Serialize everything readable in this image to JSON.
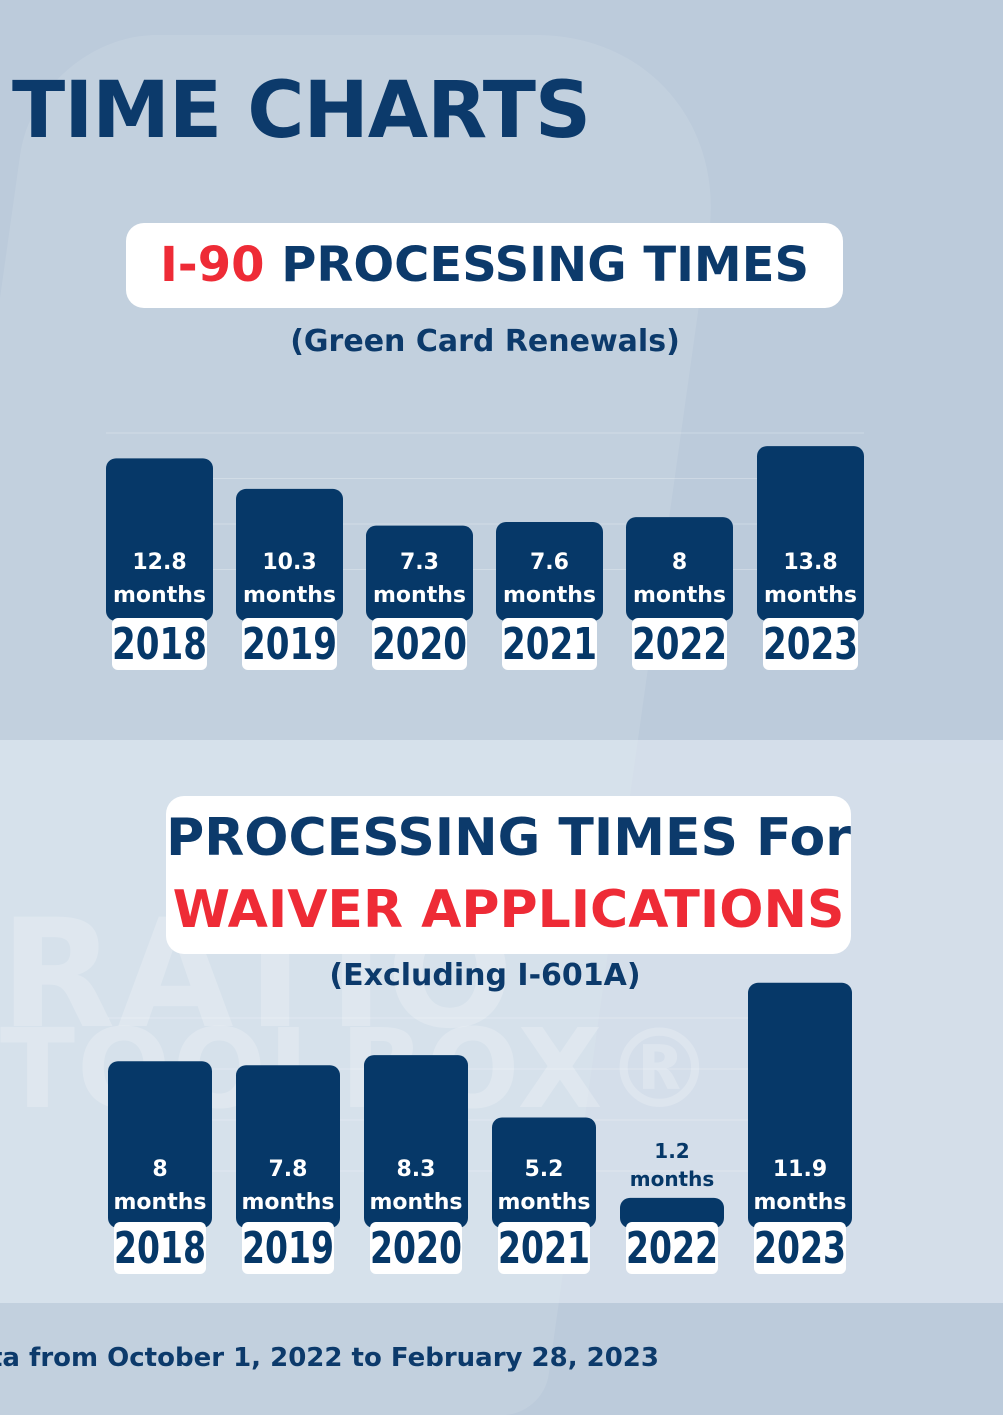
{
  "page_title": "TIME CHARTS",
  "footer_text": "ta from October 1, 2022 to February 28, 2023",
  "watermark": [
    "RATIO",
    "TOOLBOX®"
  ],
  "colors": {
    "bar": "#063868",
    "accent": "#ee2b36",
    "title": "#0c3a6b",
    "label_bg": "#ffffff"
  },
  "chart_data": [
    {
      "type": "bar",
      "title_accent": "I-90",
      "title_rest": "PROCESSING TIMES",
      "subtitle": "(Green Card Renewals)",
      "categories": [
        "2018",
        "2019",
        "2020",
        "2021",
        "2022",
        "2023"
      ],
      "values": [
        12.8,
        10.3,
        7.3,
        7.6,
        8,
        13.8
      ],
      "value_labels": [
        "12.8",
        "10.3",
        "7.3",
        "7.6",
        "8",
        "13.8"
      ],
      "unit": "months",
      "grid": true
    },
    {
      "type": "bar",
      "title_line1": "PROCESSING TIMES For",
      "title_line2": "WAIVER APPLICATIONS",
      "subtitle": "(Excluding I-601A)",
      "categories": [
        "2018",
        "2019",
        "2020",
        "2021",
        "2022",
        "2023"
      ],
      "values": [
        8,
        7.8,
        8.3,
        5.2,
        1.2,
        11.9
      ],
      "value_labels": [
        "8",
        "7.8",
        "8.3",
        "5.2",
        "1.2",
        "11.9"
      ],
      "unit": "months",
      "grid": true
    }
  ]
}
